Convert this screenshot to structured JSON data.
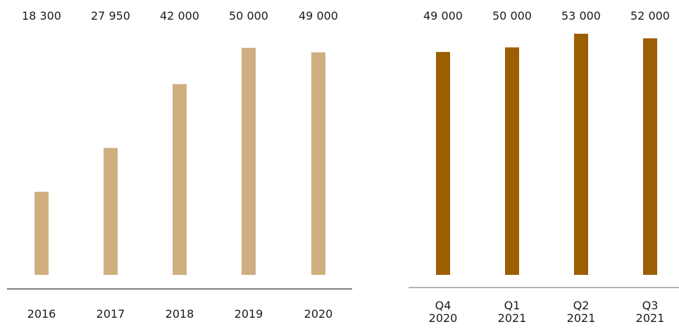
{
  "chart_data": [
    {
      "type": "bar",
      "categories": [
        "2016",
        "2017",
        "2018",
        "2019",
        "2020"
      ],
      "values": [
        18300,
        27950,
        42000,
        50000,
        49000
      ],
      "value_labels": [
        "18 300",
        "27 950",
        "42 000",
        "50 000",
        "49 000"
      ],
      "bar_color": "#cfae80",
      "axis_color": "#333333",
      "title": "",
      "xlabel": "",
      "ylabel": "",
      "ylim": [
        0,
        50000
      ],
      "grid": false
    },
    {
      "type": "bar",
      "categories": [
        "Q4\n2020",
        "Q1\n2021",
        "Q2\n2021",
        "Q3\n2021"
      ],
      "values": [
        49000,
        50000,
        53000,
        52000
      ],
      "value_labels": [
        "49 000",
        "50 000",
        "53 000",
        "52 000"
      ],
      "bar_color": "#9b5e00",
      "axis_color": "#888888",
      "title": "",
      "xlabel": "",
      "ylabel": "",
      "ylim": [
        0,
        53000
      ],
      "grid": false
    }
  ]
}
